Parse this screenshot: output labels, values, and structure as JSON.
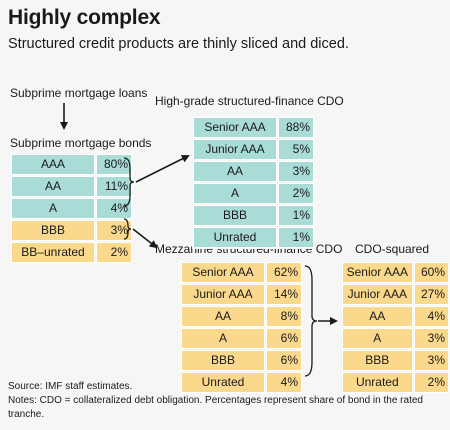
{
  "title": "Highly complex",
  "subtitle": "Structured credit products are thinly sliced and diced.",
  "labels": {
    "loans": "Subprime mortgage loans",
    "bonds": "Subprime mortgage bonds",
    "highgrade": "High-grade structured-finance CDO",
    "mezzanine": "Mezzanine structured-finance CDO",
    "squared": "CDO-squared"
  },
  "tables": {
    "bonds": [
      {
        "name": "AAA",
        "pct": "80%",
        "color": "teal"
      },
      {
        "name": "AA",
        "pct": "11%",
        "color": "teal"
      },
      {
        "name": "A",
        "pct": "4%",
        "color": "teal"
      },
      {
        "name": "BBB",
        "pct": "3%",
        "color": "yellow"
      },
      {
        "name": "BB–unrated",
        "pct": "2%",
        "color": "yellow"
      }
    ],
    "highgrade": [
      {
        "name": "Senior AAA",
        "pct": "88%",
        "color": "teal"
      },
      {
        "name": "Junior AAA",
        "pct": "5%",
        "color": "teal"
      },
      {
        "name": "AA",
        "pct": "3%",
        "color": "teal"
      },
      {
        "name": "A",
        "pct": "2%",
        "color": "teal"
      },
      {
        "name": "BBB",
        "pct": "1%",
        "color": "teal"
      },
      {
        "name": "Unrated",
        "pct": "1%",
        "color": "teal"
      }
    ],
    "mezzanine": [
      {
        "name": "Senior AAA",
        "pct": "62%",
        "color": "yellow"
      },
      {
        "name": "Junior AAA",
        "pct": "14%",
        "color": "yellow"
      },
      {
        "name": "AA",
        "pct": "8%",
        "color": "yellow"
      },
      {
        "name": "A",
        "pct": "6%",
        "color": "yellow"
      },
      {
        "name": "BBB",
        "pct": "6%",
        "color": "yellow"
      },
      {
        "name": "Unrated",
        "pct": "4%",
        "color": "yellow"
      }
    ],
    "squared": [
      {
        "name": "Senior AAA",
        "pct": "60%",
        "color": "yellow"
      },
      {
        "name": "Junior AAA",
        "pct": "27%",
        "color": "yellow"
      },
      {
        "name": "AA",
        "pct": "4%",
        "color": "yellow"
      },
      {
        "name": "A",
        "pct": "3%",
        "color": "yellow"
      },
      {
        "name": "BBB",
        "pct": "3%",
        "color": "yellow"
      },
      {
        "name": "Unrated",
        "pct": "2%",
        "color": "yellow"
      }
    ]
  },
  "colors": {
    "teal": "#a9dcd6",
    "yellow": "#fbd98c"
  },
  "source": "Source: IMF staff estimates.",
  "notes": "Notes: CDO = collateralized debt obligation. Percentages represent share of bond in the rated tranche."
}
